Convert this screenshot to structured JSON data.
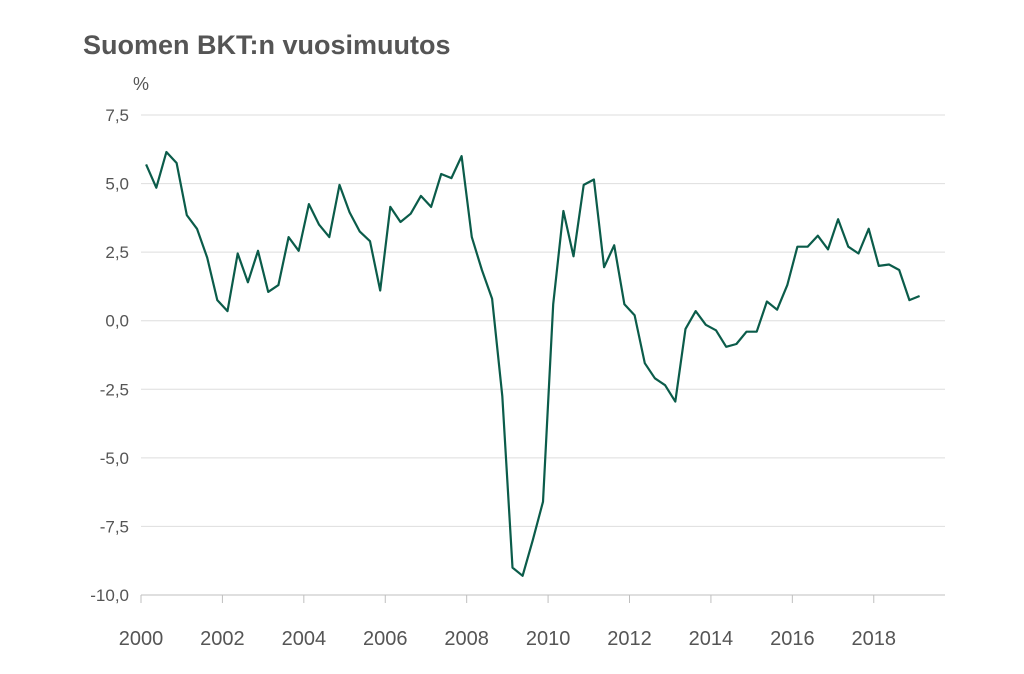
{
  "chart_data": {
    "type": "line",
    "title": "Suomen BKT:n vuosimuutos",
    "ylabel": "%",
    "xlabel": "",
    "ylim": [
      -10.0,
      7.5
    ],
    "xlim": [
      2000,
      2019.75
    ],
    "grid": "horizontal",
    "legend": "none",
    "y_ticks": [
      "7,5",
      "5,0",
      "2,5",
      "0,0",
      "-2,5",
      "-5,0",
      "-7,5",
      "-10,0"
    ],
    "y_tick_values": [
      7.5,
      5.0,
      2.5,
      0.0,
      -2.5,
      -5.0,
      -7.5,
      -10.0
    ],
    "x_ticks": [
      "2000",
      "2002",
      "2004",
      "2006",
      "2008",
      "2010",
      "2012",
      "2014",
      "2016",
      "2018"
    ],
    "x_tick_values": [
      2000,
      2002,
      2004,
      2006,
      2008,
      2010,
      2012,
      2014,
      2016,
      2018
    ],
    "line_color": "#0b5c4a",
    "series": [
      {
        "x": [
          2000.125,
          2000.375,
          2000.625,
          2000.875,
          2001.125,
          2001.375,
          2001.625,
          2001.875,
          2002.125,
          2002.375,
          2002.625,
          2002.875,
          2003.125,
          2003.375,
          2003.625,
          2003.875,
          2004.125,
          2004.375,
          2004.625,
          2004.875,
          2005.125,
          2005.375,
          2005.625,
          2005.875,
          2006.125,
          2006.375,
          2006.625,
          2006.875,
          2007.125,
          2007.375,
          2007.625,
          2007.875,
          2008.125,
          2008.375,
          2008.625,
          2008.875,
          2009.125,
          2009.375,
          2009.625,
          2009.875,
          2010.125,
          2010.375,
          2010.625,
          2010.875,
          2011.125,
          2011.375,
          2011.625,
          2011.875,
          2012.125,
          2012.375,
          2012.625,
          2012.875,
          2013.125,
          2013.375,
          2013.625,
          2013.875,
          2014.125,
          2014.375,
          2014.625,
          2014.875,
          2015.125,
          2015.375,
          2015.625,
          2015.875,
          2016.125,
          2016.375,
          2016.625,
          2016.875,
          2017.125,
          2017.375,
          2017.625,
          2017.875,
          2018.125,
          2018.375,
          2018.625,
          2018.875,
          2019.125
        ],
        "values": [
          5.7,
          4.85,
          6.15,
          5.75,
          3.85,
          3.35,
          2.3,
          0.75,
          0.35,
          2.45,
          1.4,
          2.55,
          1.05,
          1.3,
          3.05,
          2.55,
          4.25,
          3.5,
          3.05,
          4.95,
          3.95,
          3.25,
          2.9,
          1.1,
          4.15,
          3.6,
          3.9,
          4.55,
          4.15,
          5.35,
          5.2,
          6.0,
          3.05,
          1.85,
          0.8,
          -2.75,
          -9.0,
          -9.3,
          -8.0,
          -6.6,
          0.6,
          4.0,
          2.35,
          4.95,
          5.15,
          1.95,
          2.75,
          0.6,
          0.2,
          -1.55,
          -2.1,
          -2.35,
          -2.95,
          -0.3,
          0.35,
          -0.15,
          -0.35,
          -0.95,
          -0.85,
          -0.4,
          -0.4,
          0.7,
          0.4,
          1.3,
          2.7,
          2.7,
          3.1,
          2.6,
          3.7,
          2.7,
          2.45,
          3.35,
          2.0,
          2.05,
          1.85,
          0.75,
          0.9
        ]
      }
    ]
  }
}
